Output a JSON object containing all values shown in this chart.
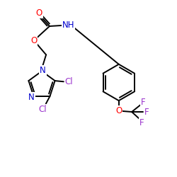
{
  "bg_color": "#ffffff",
  "bond_color": "#000000",
  "colors": {
    "O": "#ff0000",
    "N": "#0000cd",
    "Cl": "#9932cc",
    "F": "#9932cc",
    "C": "#000000"
  },
  "lw": 1.4,
  "fs": 8.5
}
